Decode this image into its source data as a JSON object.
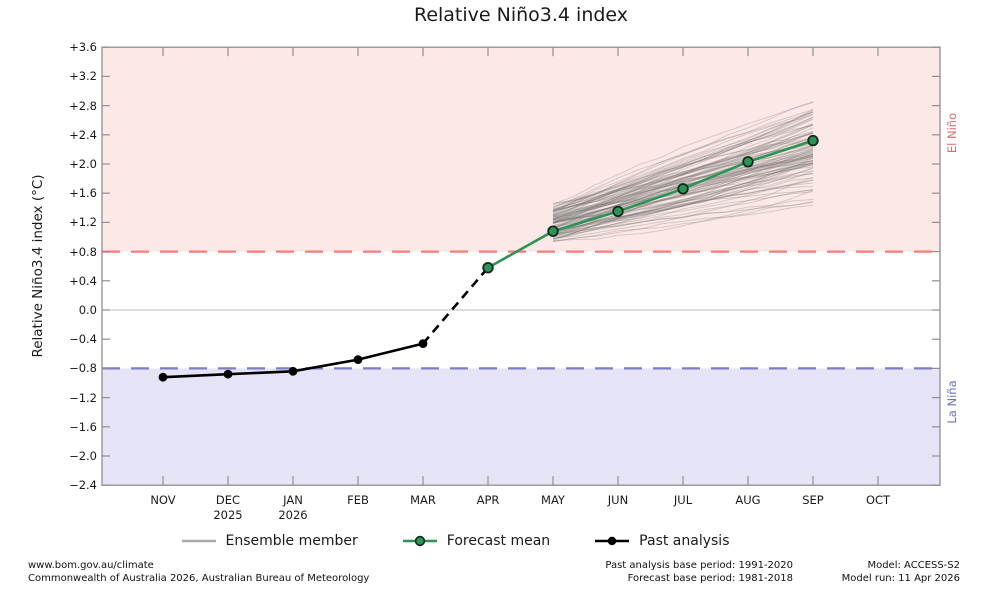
{
  "title": "Relative Niño3.4 index",
  "chart_data": {
    "type": "line",
    "title": "Relative Niño3.4 index",
    "xlabel": "",
    "ylabel": "Relative Niño3.4 index (°C)",
    "ylim": [
      -2.4,
      3.6
    ],
    "ytick_step": 0.4,
    "ytick_labels": [
      "+3.6",
      "+3.2",
      "+2.8",
      "+2.4",
      "+2.0",
      "+1.6",
      "+1.2",
      "+0.8",
      "+0.4",
      "0.0",
      "−0.4",
      "−0.8",
      "−1.2",
      "−1.6",
      "−2.0",
      "−2.4"
    ],
    "months": [
      {
        "label": "NOV",
        "year": ""
      },
      {
        "label": "DEC",
        "year": "2025"
      },
      {
        "label": "JAN",
        "year": "2026"
      },
      {
        "label": "FEB",
        "year": ""
      },
      {
        "label": "MAR",
        "year": ""
      },
      {
        "label": "APR",
        "year": ""
      },
      {
        "label": "MAY",
        "year": ""
      },
      {
        "label": "JUN",
        "year": ""
      },
      {
        "label": "JUL",
        "year": ""
      },
      {
        "label": "AUG",
        "year": ""
      },
      {
        "label": "SEP",
        "year": ""
      },
      {
        "label": "OCT",
        "year": ""
      }
    ],
    "grid": "zero-line-only",
    "zero_line_value": 0.0,
    "thresholds": {
      "el_nino_value": 0.8,
      "la_nina_value": -0.8,
      "el_nino_line_color": "#f87c7c",
      "la_nina_line_color": "#7d7dc9"
    },
    "bands": {
      "el_nino_fill": "#fce9e7",
      "la_nina_fill": "#e5e4f6"
    },
    "region_labels": {
      "el_nino": "El Niño",
      "la_nina": "La Niña"
    },
    "series": [
      {
        "name": "Past analysis",
        "color": "#000000",
        "month_indices": [
          0,
          1,
          2,
          3,
          4
        ],
        "month_names": [
          "NOV",
          "DEC",
          "JAN",
          "FEB",
          "MAR"
        ],
        "values": [
          -0.92,
          -0.88,
          -0.84,
          -0.68,
          -0.46
        ]
      },
      {
        "name": "Forecast mean",
        "color": "#2d9457",
        "marker_edge_color": "#122b1d",
        "month_indices": [
          5,
          6,
          7,
          8,
          9,
          10
        ],
        "month_names": [
          "APR",
          "MAY",
          "JUN",
          "JUL",
          "AUG",
          "SEP"
        ],
        "values": [
          0.58,
          1.08,
          1.35,
          1.66,
          2.03,
          2.32
        ]
      }
    ],
    "transition_segment": {
      "style": "dashed",
      "color": "#000000",
      "from": {
        "month": "MAR",
        "month_index": 4,
        "value": -0.46
      },
      "to": {
        "month": "APR",
        "month_index": 5,
        "value": 0.58
      }
    },
    "ensemble": {
      "name": "Ensemble member",
      "color": "rgba(110,110,110,0.28)",
      "count": 96,
      "start_month": "MAY",
      "start_month_index": 6,
      "end_month": "SEP",
      "end_month_index": 10,
      "start_value_range": [
        0.8,
        1.48
      ],
      "end_value_range": [
        1.2,
        3.05
      ]
    },
    "legend_position": "bottom-center"
  },
  "legend": {
    "items": [
      {
        "label": "Ensemble member",
        "swatch": "gray-line",
        "color": "#aaaaaa"
      },
      {
        "label": "Forecast mean",
        "swatch": "green-line-circle",
        "color": "#2d9457"
      },
      {
        "label": "Past analysis",
        "swatch": "black-line-dot",
        "color": "#000000"
      }
    ]
  },
  "footer": {
    "left": {
      "line1": "www.bom.gov.au/climate",
      "line2": "Commonwealth of Australia 2026, Australian Bureau of Meteorology"
    },
    "center": {
      "line1": "Past analysis base period: 1991-2020",
      "line2": "Forecast base period: 1981-2018"
    },
    "right": {
      "line1": "Model: ACCESS-S2",
      "line2": "Model run: 11 Apr 2026"
    }
  }
}
